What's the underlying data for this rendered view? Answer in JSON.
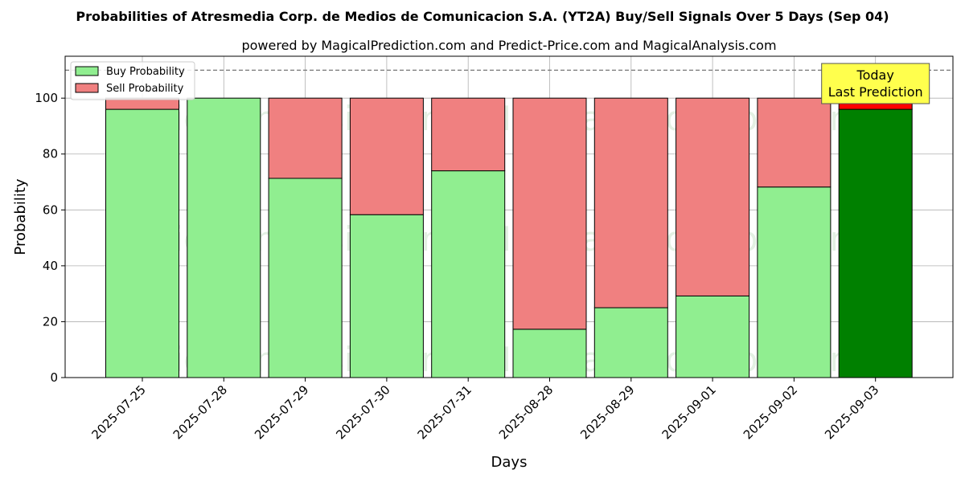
{
  "chart_data": {
    "type": "bar",
    "stacked": true,
    "title": "Probabilities of Atresmedia Corp. de Medios de Comunicacion S.A. (YT2A) Buy/Sell Signals Over 5 Days (Sep 04)",
    "subtitle": "powered by MagicalPrediction.com and Predict-Price.com and MagicalAnalysis.com",
    "xlabel": "Days",
    "ylabel": "Probability",
    "ylim": [
      0,
      115
    ],
    "yticks": [
      0,
      20,
      40,
      60,
      80,
      100
    ],
    "reference_line": 110,
    "grid": true,
    "legend_position": "top-left",
    "categories": [
      "2025-07-25",
      "2025-07-28",
      "2025-07-29",
      "2025-07-30",
      "2025-07-31",
      "2025-08-28",
      "2025-08-29",
      "2025-09-01",
      "2025-09-02",
      "2025-09-03"
    ],
    "series": [
      {
        "name": "Buy Probability",
        "values": [
          96,
          100,
          71.3,
          58.3,
          74,
          17.3,
          25,
          29.2,
          68.2,
          96
        ],
        "color": "#90ee90",
        "highlight_color": "#008000"
      },
      {
        "name": "Sell Probability",
        "values": [
          4,
          0,
          28.7,
          41.7,
          26,
          82.7,
          75,
          70.8,
          31.8,
          4
        ],
        "color": "#f08080",
        "highlight_color": "#ff0000"
      }
    ],
    "highlight_index": 9,
    "annotation": {
      "line1": "Today",
      "line2": "Last Prediction",
      "background": "#ffff4d"
    },
    "watermarks": [
      "MagicalAnalysis.com",
      "MagicalPrediction.com"
    ]
  }
}
